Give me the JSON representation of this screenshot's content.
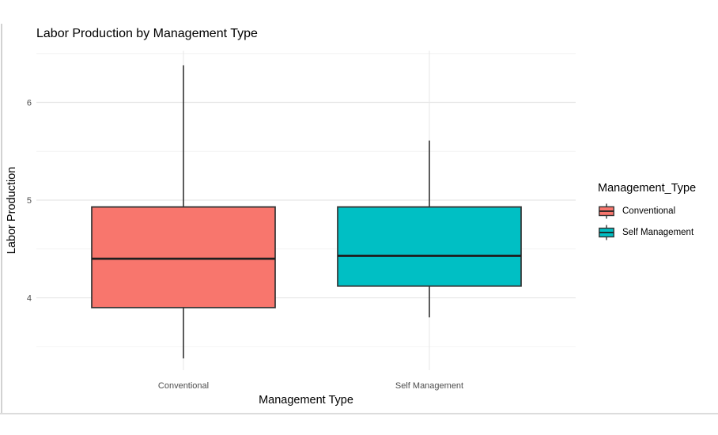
{
  "chart_data": {
    "type": "boxplot",
    "title": "Labor Production by Management Type",
    "xlabel": "Management Type",
    "ylabel": "Labor Production",
    "categories": [
      "Conventional",
      "Self Management"
    ],
    "series": [
      {
        "name": "Conventional",
        "color": "#F8766D",
        "stats": {
          "whisker_low": 3.38,
          "q1": 3.9,
          "median": 4.4,
          "q3": 4.93,
          "whisker_high": 6.38
        }
      },
      {
        "name": "Self Management",
        "color": "#00BFC4",
        "stats": {
          "whisker_low": 3.8,
          "q1": 4.12,
          "median": 4.43,
          "q3": 4.93,
          "whisker_high": 5.61
        }
      }
    ],
    "y_axis": {
      "ticks_major": [
        4,
        5,
        6
      ],
      "ticks_minor": [
        3.5,
        4.5,
        5.5,
        6.5
      ],
      "range": [
        3.26,
        6.53
      ]
    },
    "legend": {
      "title": "Management_Type",
      "position": "right",
      "entries": [
        "Conventional",
        "Self Management"
      ]
    },
    "grid": {
      "horizontal": "major+minor",
      "vertical": "at category centers"
    },
    "styles": {
      "grid_major": "#e7e7e7",
      "grid_minor": "#f4f4f4",
      "box_border": "#333333",
      "median_color": "#1f1f1f",
      "tick_label_color": "#4d4d4d",
      "text_color": "#000000"
    }
  }
}
